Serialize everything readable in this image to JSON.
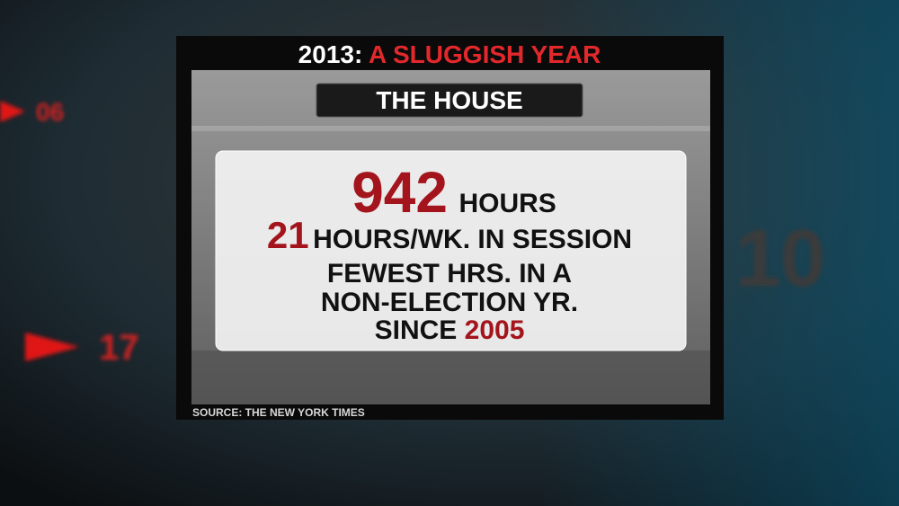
{
  "background": {
    "labels": [
      "06",
      "17",
      "10"
    ]
  },
  "header": {
    "year": "2013:",
    "title": "A SLUGGISH YEAR",
    "subtitle": "THE HOUSE"
  },
  "stats": {
    "hours_value": "942",
    "hours_unit": "HOURS",
    "weekly_value": "21",
    "weekly_unit": "HOURS/WK. IN SESSION",
    "note_lines": [
      "FEWEST HRS. IN A",
      "NON-ELECTION YR."
    ],
    "since_text": "SINCE",
    "since_year": "2005"
  },
  "source": "SOURCE: THE NEW YORK TIMES"
}
